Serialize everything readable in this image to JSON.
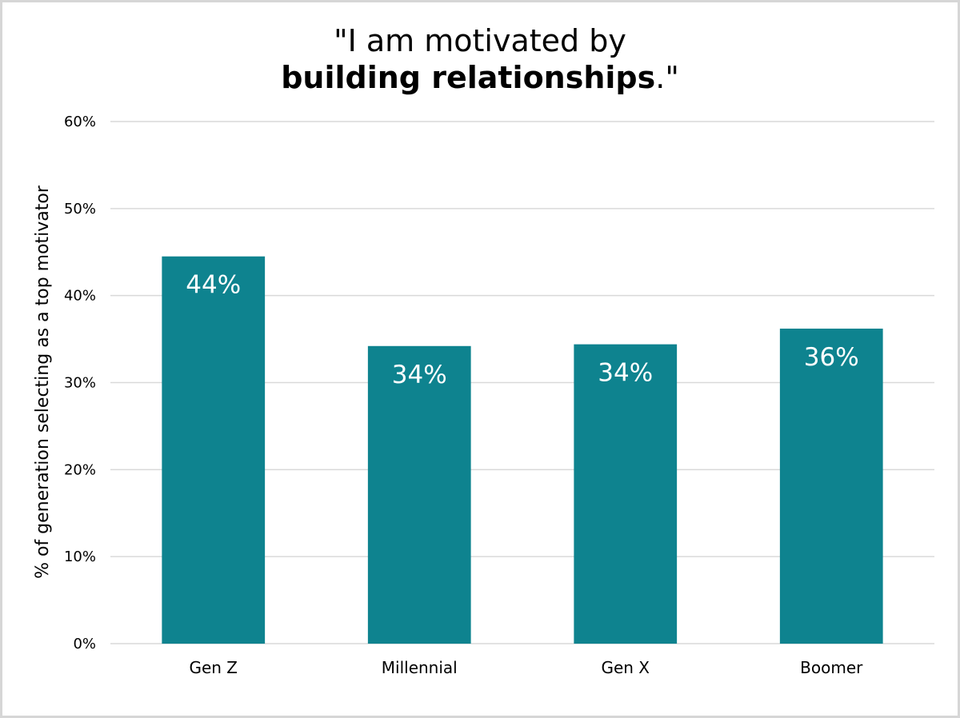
{
  "chart_data": {
    "type": "bar",
    "title_line1": "\"I am motivated by",
    "title_line2_bold": "building relationships",
    "title_line2_end": ".\"",
    "ylabel": "% of generation selecting as a top motivator",
    "xlabel": "",
    "categories": [
      "Gen Z",
      "Millennial",
      "Gen X",
      "Boomer"
    ],
    "values": [
      44.5,
      34.2,
      34.4,
      36.2
    ],
    "data_labels": [
      "44%",
      "34%",
      "34%",
      "36%"
    ],
    "ylim": [
      0,
      60
    ],
    "yticks": [
      0,
      10,
      20,
      30,
      40,
      50,
      60
    ],
    "ytick_labels": [
      "0%",
      "10%",
      "20%",
      "30%",
      "40%",
      "50%",
      "60%"
    ],
    "grid": true,
    "legend": "none",
    "bar_color": "#0e838f",
    "grid_color": "#d9d9d9"
  }
}
